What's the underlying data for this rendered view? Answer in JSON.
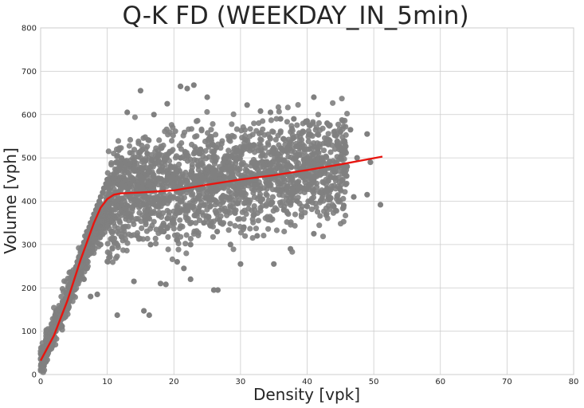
{
  "chart_data": {
    "type": "scatter",
    "title": "Q-K FD (WEEKDAY_IN_5min)",
    "xlabel": "Density [vpk]",
    "ylabel": "Volume [vph]",
    "xlim": [
      0,
      80
    ],
    "ylim": [
      0,
      800
    ],
    "xticks": [
      "0",
      "10",
      "20",
      "30",
      "40",
      "50",
      "60",
      "70",
      "80"
    ],
    "yticks": [
      "0",
      "100",
      "200",
      "300",
      "400",
      "500",
      "600",
      "700",
      "800"
    ],
    "grid": true,
    "legend": "none",
    "colors": {
      "points": "#808080",
      "fit": "#e8150f",
      "grid": "#cccccc",
      "background": "#ffffff"
    },
    "series": [
      {
        "kind": "scatter",
        "points": [
          [
            0.3,
            10
          ],
          [
            0.5,
            20
          ],
          [
            0.8,
            30
          ],
          [
            1.0,
            45
          ],
          [
            1.2,
            55
          ],
          [
            1.5,
            65
          ],
          [
            1.8,
            75
          ],
          [
            2.0,
            90
          ],
          [
            2.3,
            100
          ],
          [
            2.5,
            110
          ],
          [
            2.8,
            125
          ],
          [
            3.0,
            135
          ],
          [
            3.3,
            150
          ],
          [
            3.5,
            160
          ],
          [
            3.8,
            175
          ],
          [
            4.0,
            185
          ],
          [
            4.3,
            200
          ],
          [
            4.5,
            210
          ],
          [
            4.8,
            225
          ],
          [
            5.0,
            235
          ],
          [
            5.3,
            245
          ],
          [
            5.5,
            260
          ],
          [
            5.8,
            270
          ],
          [
            6.0,
            285
          ],
          [
            6.3,
            295
          ],
          [
            6.5,
            305
          ],
          [
            6.8,
            320
          ],
          [
            7.0,
            330
          ],
          [
            7.3,
            340
          ],
          [
            7.5,
            350
          ],
          [
            7.8,
            360
          ],
          [
            8.0,
            370
          ],
          [
            8.3,
            380
          ],
          [
            8.5,
            390
          ],
          [
            8.8,
            400
          ],
          [
            9.0,
            410
          ],
          [
            9.3,
            420
          ],
          [
            9.5,
            430
          ],
          [
            9.8,
            440
          ],
          [
            10.0,
            450
          ],
          [
            3.0,
            115
          ],
          [
            4.0,
            165
          ],
          [
            5.0,
            210
          ],
          [
            6.0,
            250
          ],
          [
            7.0,
            295
          ],
          [
            8.0,
            310
          ],
          [
            9.0,
            300
          ],
          [
            8.5,
            185
          ],
          [
            7.5,
            180
          ],
          [
            6.5,
            220
          ],
          [
            11.5,
            137
          ],
          [
            14.0,
            215
          ],
          [
            15.5,
            147
          ],
          [
            16.3,
            137
          ],
          [
            18.0,
            210
          ],
          [
            18.8,
            208
          ],
          [
            20.5,
            260
          ],
          [
            21.5,
            245
          ],
          [
            22.5,
            220
          ],
          [
            26.0,
            195
          ],
          [
            26.6,
            195
          ],
          [
            30.0,
            255
          ],
          [
            35.0,
            255
          ],
          [
            37.5,
            290
          ],
          [
            41.0,
            325
          ],
          [
            51.0,
            392
          ],
          [
            49.0,
            415
          ],
          [
            44.0,
            388
          ],
          [
            45.5,
            390
          ],
          [
            47.0,
            410
          ],
          [
            15.0,
            655
          ],
          [
            21.0,
            665
          ],
          [
            23.0,
            668
          ],
          [
            22.0,
            660
          ],
          [
            41.0,
            640
          ],
          [
            25.0,
            640
          ],
          [
            19.0,
            625
          ],
          [
            31.0,
            622
          ],
          [
            17.0,
            600
          ],
          [
            13.0,
            605
          ],
          [
            33.0,
            608
          ],
          [
            34.5,
            605
          ],
          [
            36.0,
            590
          ],
          [
            38.0,
            590
          ],
          [
            40.0,
            585
          ],
          [
            43.0,
            580
          ],
          [
            45.0,
            560
          ],
          [
            46.5,
            565
          ],
          [
            49.0,
            555
          ],
          [
            44.5,
            530
          ],
          [
            12.0,
            480
          ],
          [
            13.0,
            430
          ],
          [
            14.0,
            390
          ],
          [
            15.0,
            450
          ],
          [
            16.0,
            510
          ],
          [
            17.0,
            400
          ],
          [
            18.0,
            470
          ],
          [
            19.0,
            360
          ],
          [
            20.0,
            430
          ],
          [
            21.0,
            500
          ],
          [
            22.0,
            380
          ],
          [
            23.0,
            450
          ],
          [
            24.0,
            520
          ],
          [
            25.0,
            410
          ],
          [
            26.0,
            470
          ],
          [
            27.0,
            350
          ],
          [
            28.0,
            440
          ],
          [
            29.0,
            500
          ],
          [
            30.0,
            420
          ],
          [
            31.0,
            470
          ],
          [
            32.0,
            530
          ],
          [
            33.0,
            400
          ],
          [
            34.0,
            460
          ],
          [
            35.0,
            510
          ],
          [
            36.0,
            440
          ],
          [
            37.0,
            480
          ],
          [
            38.0,
            420
          ],
          [
            39.0,
            470
          ],
          [
            40.0,
            500
          ],
          [
            41.0,
            450
          ],
          [
            42.0,
            480
          ],
          [
            43.0,
            430
          ],
          [
            44.0,
            470
          ],
          [
            46.0,
            480
          ],
          [
            47.5,
            500
          ],
          [
            49.5,
            490
          ],
          [
            12.5,
            340
          ],
          [
            14.5,
            320
          ],
          [
            16.5,
            300
          ],
          [
            18.5,
            330
          ],
          [
            20.5,
            310
          ],
          [
            22.5,
            300
          ],
          [
            24.5,
            350
          ],
          [
            26.5,
            330
          ],
          [
            28.5,
            300
          ],
          [
            30.5,
            340
          ],
          [
            32.5,
            320
          ],
          [
            34.5,
            360
          ],
          [
            36.5,
            380
          ],
          [
            38.5,
            400
          ]
        ]
      },
      {
        "kind": "line",
        "points": [
          [
            0,
            32
          ],
          [
            2,
            90
          ],
          [
            4,
            170
          ],
          [
            6,
            265
          ],
          [
            8,
            350
          ],
          [
            9,
            385
          ],
          [
            10,
            405
          ],
          [
            11,
            415
          ],
          [
            12,
            418
          ],
          [
            15,
            420
          ],
          [
            20,
            425
          ],
          [
            25,
            438
          ],
          [
            30,
            450
          ],
          [
            35,
            460
          ],
          [
            40,
            472
          ],
          [
            45,
            485
          ],
          [
            51.3,
            503
          ]
        ]
      }
    ]
  }
}
